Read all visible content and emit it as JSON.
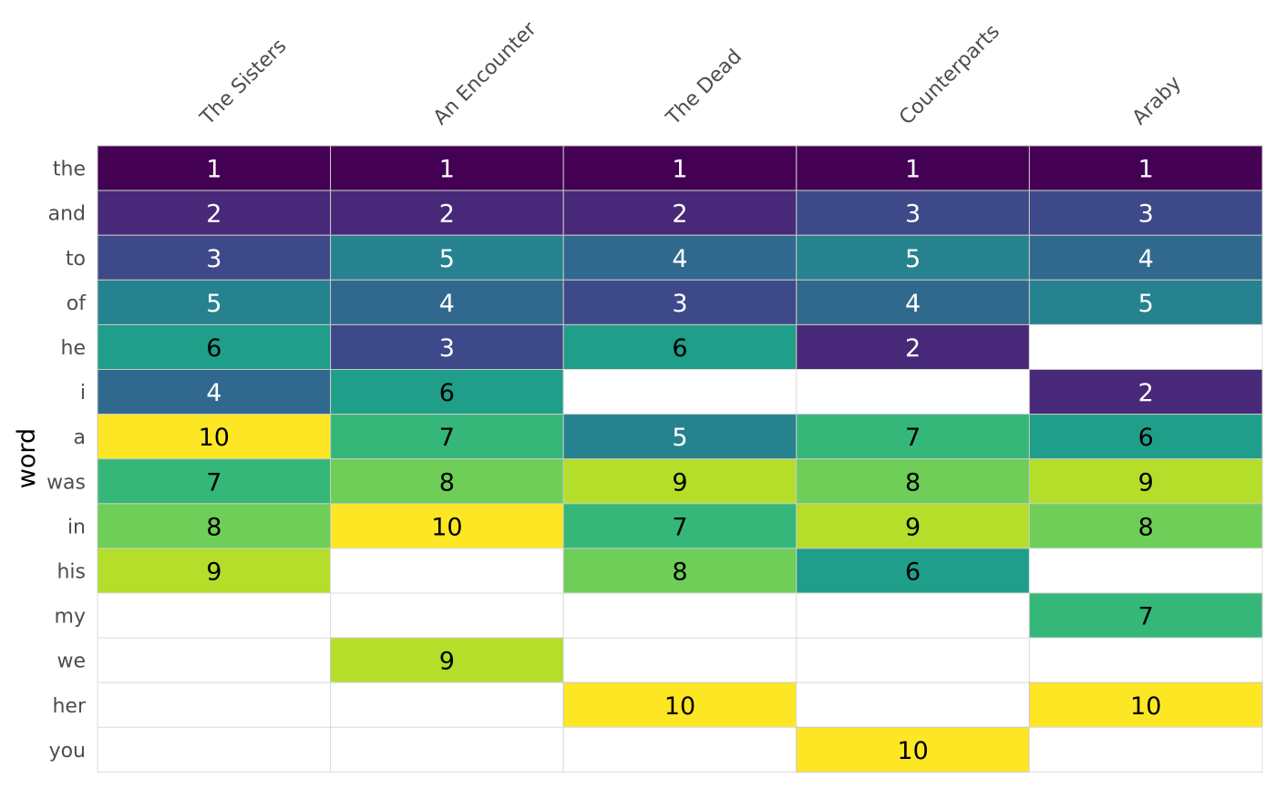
{
  "chart_data": {
    "type": "heatmap",
    "title": "",
    "xlabel": "",
    "ylabel": "word",
    "columns": [
      "The Sisters",
      "An Encounter",
      "The Dead",
      "Counterparts",
      "Araby"
    ],
    "rows": [
      "the",
      "and",
      "to",
      "of",
      "he",
      "i",
      "a",
      "was",
      "in",
      "his",
      "my",
      "we",
      "her",
      "you"
    ],
    "values": [
      [
        1,
        1,
        1,
        1,
        1
      ],
      [
        2,
        2,
        2,
        3,
        3
      ],
      [
        3,
        5,
        4,
        5,
        4
      ],
      [
        5,
        4,
        3,
        4,
        5
      ],
      [
        6,
        3,
        6,
        2,
        null
      ],
      [
        4,
        6,
        null,
        null,
        2
      ],
      [
        10,
        7,
        5,
        7,
        6
      ],
      [
        7,
        8,
        9,
        8,
        9
      ],
      [
        8,
        10,
        7,
        9,
        8
      ],
      [
        9,
        null,
        8,
        6,
        null
      ],
      [
        null,
        null,
        null,
        null,
        7
      ],
      [
        null,
        9,
        null,
        null,
        null
      ],
      [
        null,
        null,
        10,
        null,
        10
      ],
      [
        null,
        null,
        null,
        10,
        null
      ]
    ],
    "color_scale": "viridis",
    "colors": {
      "1": "#440154",
      "2": "#482878",
      "3": "#3e4989",
      "4": "#31688e",
      "5": "#26828e",
      "6": "#1f9e89",
      "7": "#35b779",
      "8": "#6ece58",
      "9": "#b5de2b",
      "10": "#fde725"
    },
    "grid": true,
    "legend": "none"
  }
}
